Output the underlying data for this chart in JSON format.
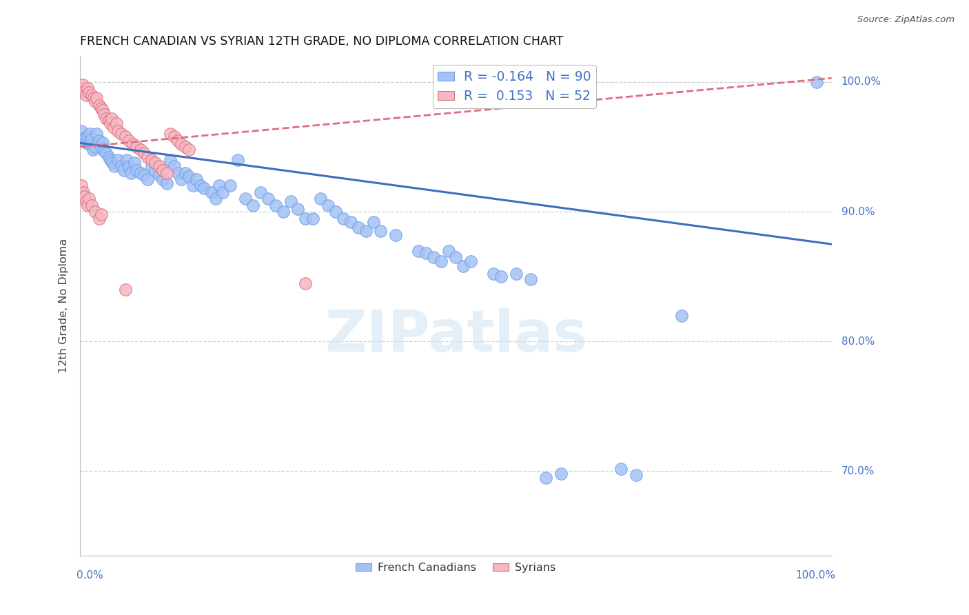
{
  "title": "FRENCH CANADIAN VS SYRIAN 12TH GRADE, NO DIPLOMA CORRELATION CHART",
  "source": "Source: ZipAtlas.com",
  "ylabel": "12th Grade, No Diploma",
  "ytick_labels": [
    "100.0%",
    "90.0%",
    "80.0%",
    "70.0%"
  ],
  "ytick_values": [
    1.0,
    0.9,
    0.8,
    0.7
  ],
  "xlim": [
    0.0,
    1.0
  ],
  "ylim": [
    0.635,
    1.02
  ],
  "legend_r1_blue": "R = -0.164",
  "legend_r1_n": "N = 90",
  "legend_r2_pink": "R =  0.153",
  "legend_r2_n": "N = 52",
  "blue_color": "#a4c2f4",
  "blue_edge": "#6d9eeb",
  "pink_color": "#f4b8c1",
  "pink_edge": "#e06c80",
  "line_blue_color": "#3c6ebf",
  "line_pink_color": "#e06c80",
  "watermark_text": "ZIPatlas",
  "blue_points": [
    [
      0.002,
      0.962
    ],
    [
      0.004,
      0.955
    ],
    [
      0.006,
      0.957
    ],
    [
      0.008,
      0.953
    ],
    [
      0.01,
      0.958
    ],
    [
      0.012,
      0.952
    ],
    [
      0.013,
      0.96
    ],
    [
      0.015,
      0.956
    ],
    [
      0.017,
      0.948
    ],
    [
      0.019,
      0.95
    ],
    [
      0.022,
      0.96
    ],
    [
      0.025,
      0.955
    ],
    [
      0.028,
      0.95
    ],
    [
      0.03,
      0.953
    ],
    [
      0.032,
      0.947
    ],
    [
      0.035,
      0.945
    ],
    [
      0.038,
      0.942
    ],
    [
      0.04,
      0.94
    ],
    [
      0.043,
      0.938
    ],
    [
      0.046,
      0.935
    ],
    [
      0.05,
      0.94
    ],
    [
      0.055,
      0.935
    ],
    [
      0.058,
      0.932
    ],
    [
      0.062,
      0.94
    ],
    [
      0.065,
      0.935
    ],
    [
      0.068,
      0.93
    ],
    [
      0.072,
      0.938
    ],
    [
      0.075,
      0.932
    ],
    [
      0.08,
      0.93
    ],
    [
      0.085,
      0.928
    ],
    [
      0.09,
      0.925
    ],
    [
      0.095,
      0.935
    ],
    [
      0.1,
      0.932
    ],
    [
      0.105,
      0.928
    ],
    [
      0.11,
      0.925
    ],
    [
      0.115,
      0.922
    ],
    [
      0.12,
      0.94
    ],
    [
      0.125,
      0.935
    ],
    [
      0.13,
      0.93
    ],
    [
      0.135,
      0.925
    ],
    [
      0.14,
      0.93
    ],
    [
      0.145,
      0.927
    ],
    [
      0.15,
      0.92
    ],
    [
      0.155,
      0.925
    ],
    [
      0.16,
      0.92
    ],
    [
      0.165,
      0.918
    ],
    [
      0.175,
      0.915
    ],
    [
      0.18,
      0.91
    ],
    [
      0.185,
      0.92
    ],
    [
      0.19,
      0.915
    ],
    [
      0.2,
      0.92
    ],
    [
      0.21,
      0.94
    ],
    [
      0.22,
      0.91
    ],
    [
      0.23,
      0.905
    ],
    [
      0.24,
      0.915
    ],
    [
      0.25,
      0.91
    ],
    [
      0.26,
      0.905
    ],
    [
      0.27,
      0.9
    ],
    [
      0.28,
      0.908
    ],
    [
      0.29,
      0.902
    ],
    [
      0.3,
      0.895
    ],
    [
      0.31,
      0.895
    ],
    [
      0.32,
      0.91
    ],
    [
      0.33,
      0.905
    ],
    [
      0.34,
      0.9
    ],
    [
      0.35,
      0.895
    ],
    [
      0.36,
      0.892
    ],
    [
      0.37,
      0.888
    ],
    [
      0.38,
      0.885
    ],
    [
      0.39,
      0.892
    ],
    [
      0.4,
      0.885
    ],
    [
      0.42,
      0.882
    ],
    [
      0.45,
      0.87
    ],
    [
      0.46,
      0.868
    ],
    [
      0.47,
      0.865
    ],
    [
      0.48,
      0.862
    ],
    [
      0.49,
      0.87
    ],
    [
      0.5,
      0.865
    ],
    [
      0.51,
      0.858
    ],
    [
      0.52,
      0.862
    ],
    [
      0.55,
      0.852
    ],
    [
      0.56,
      0.85
    ],
    [
      0.58,
      0.852
    ],
    [
      0.6,
      0.848
    ],
    [
      0.62,
      0.695
    ],
    [
      0.64,
      0.698
    ],
    [
      0.72,
      0.702
    ],
    [
      0.74,
      0.697
    ],
    [
      0.8,
      0.82
    ],
    [
      0.98,
      1.0
    ]
  ],
  "pink_points": [
    [
      0.001,
      0.995
    ],
    [
      0.003,
      0.998
    ],
    [
      0.006,
      0.993
    ],
    [
      0.008,
      0.99
    ],
    [
      0.01,
      0.995
    ],
    [
      0.012,
      0.992
    ],
    [
      0.015,
      0.99
    ],
    [
      0.018,
      0.988
    ],
    [
      0.02,
      0.985
    ],
    [
      0.022,
      0.988
    ],
    [
      0.025,
      0.982
    ],
    [
      0.028,
      0.98
    ],
    [
      0.03,
      0.978
    ],
    [
      0.032,
      0.975
    ],
    [
      0.035,
      0.972
    ],
    [
      0.038,
      0.97
    ],
    [
      0.04,
      0.968
    ],
    [
      0.042,
      0.972
    ],
    [
      0.045,
      0.965
    ],
    [
      0.048,
      0.968
    ],
    [
      0.05,
      0.962
    ],
    [
      0.055,
      0.96
    ],
    [
      0.06,
      0.958
    ],
    [
      0.065,
      0.955
    ],
    [
      0.07,
      0.952
    ],
    [
      0.075,
      0.95
    ],
    [
      0.08,
      0.948
    ],
    [
      0.085,
      0.945
    ],
    [
      0.09,
      0.942
    ],
    [
      0.095,
      0.94
    ],
    [
      0.1,
      0.938
    ],
    [
      0.105,
      0.935
    ],
    [
      0.11,
      0.932
    ],
    [
      0.115,
      0.93
    ],
    [
      0.12,
      0.96
    ],
    [
      0.125,
      0.958
    ],
    [
      0.13,
      0.955
    ],
    [
      0.135,
      0.952
    ],
    [
      0.14,
      0.95
    ],
    [
      0.145,
      0.948
    ],
    [
      0.002,
      0.92
    ],
    [
      0.004,
      0.915
    ],
    [
      0.006,
      0.912
    ],
    [
      0.008,
      0.908
    ],
    [
      0.01,
      0.905
    ],
    [
      0.012,
      0.91
    ],
    [
      0.015,
      0.905
    ],
    [
      0.02,
      0.9
    ],
    [
      0.025,
      0.895
    ],
    [
      0.028,
      0.898
    ],
    [
      0.06,
      0.84
    ],
    [
      0.3,
      0.845
    ]
  ],
  "blue_line": [
    0.0,
    0.953,
    1.0,
    0.875
  ],
  "pink_line": [
    0.0,
    0.95,
    1.0,
    1.003
  ],
  "grid_color": "#d0d0d0",
  "bg_color": "#ffffff"
}
